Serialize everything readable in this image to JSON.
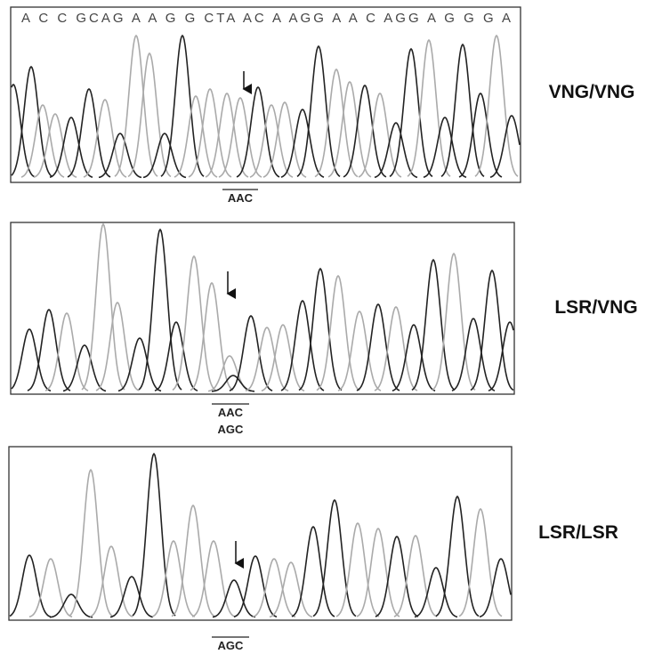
{
  "panels": [
    {
      "sequence": "A C C GCAG A A G G CTA AC A AGG A A C AGG A G G G A",
      "genotype": "VNG/VNG",
      "codons": [
        "AAC"
      ]
    },
    {
      "genotype": "LSR/VNG",
      "codons": [
        "AAC",
        "AGC"
      ]
    },
    {
      "genotype": "LSR/LSR",
      "codons": [
        "AGC"
      ]
    }
  ]
}
